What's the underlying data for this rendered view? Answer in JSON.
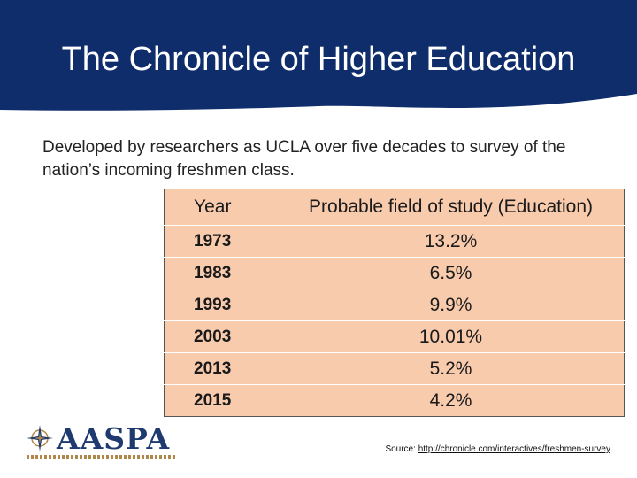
{
  "header": {
    "title": "The Chronicle of Higher Education",
    "color": "#0f2d6b"
  },
  "intro": {
    "text": "Developed by researchers as UCLA over five decades to survey of the nation’s incoming freshmen class."
  },
  "table": {
    "columns": [
      "Year",
      "Probable field of study (Education)"
    ],
    "rows": [
      {
        "year": "1973",
        "value": "13.2%"
      },
      {
        "year": "1983",
        "value": "6.5%"
      },
      {
        "year": "1993",
        "value": "9.9%"
      },
      {
        "year": "2003",
        "value": "10.01%"
      },
      {
        "year": "2013",
        "value": "5.2%"
      },
      {
        "year": "2015",
        "value": "4.2%"
      }
    ],
    "fill_color": "#f8cbad"
  },
  "logo": {
    "text": "AASPA",
    "icon": "compass-star-icon"
  },
  "source": {
    "label": "Source:",
    "link": "http://chronicle.com/interactives/freshmen-survey"
  }
}
